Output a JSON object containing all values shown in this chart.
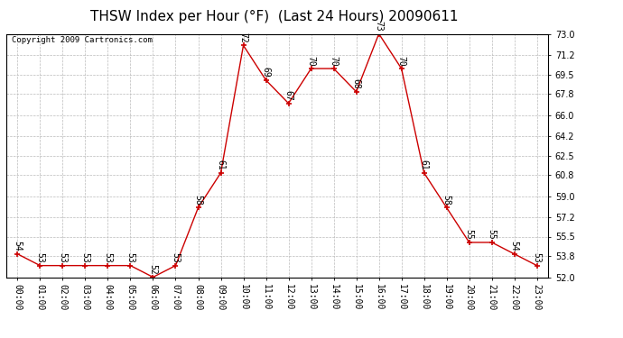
{
  "title": "THSW Index per Hour (°F)  (Last 24 Hours) 20090611",
  "copyright": "Copyright 2009 Cartronics.com",
  "hours": [
    0,
    1,
    2,
    3,
    4,
    5,
    6,
    7,
    8,
    9,
    10,
    11,
    12,
    13,
    14,
    15,
    16,
    17,
    18,
    19,
    20,
    21,
    22,
    23
  ],
  "hour_labels": [
    "00:00",
    "01:00",
    "02:00",
    "03:00",
    "04:00",
    "05:00",
    "06:00",
    "07:00",
    "08:00",
    "09:00",
    "10:00",
    "11:00",
    "12:00",
    "13:00",
    "14:00",
    "15:00",
    "16:00",
    "17:00",
    "18:00",
    "19:00",
    "20:00",
    "21:00",
    "22:00",
    "23:00"
  ],
  "values": [
    54,
    53,
    53,
    53,
    53,
    53,
    52,
    53,
    58,
    61,
    72,
    69,
    67,
    70,
    70,
    68,
    73,
    70,
    61,
    58,
    55,
    55,
    54,
    53
  ],
  "line_color": "#cc0000",
  "marker_color": "#cc0000",
  "bg_color": "#ffffff",
  "plot_bg_color": "#ffffff",
  "grid_color": "#bbbbbb",
  "ylim_min": 52.0,
  "ylim_max": 73.0,
  "yticks": [
    52.0,
    53.8,
    55.5,
    57.2,
    59.0,
    60.8,
    62.5,
    64.2,
    66.0,
    67.8,
    69.5,
    71.2,
    73.0
  ],
  "title_fontsize": 11,
  "copyright_fontsize": 6.5,
  "label_fontsize": 7,
  "annotation_fontsize": 7
}
